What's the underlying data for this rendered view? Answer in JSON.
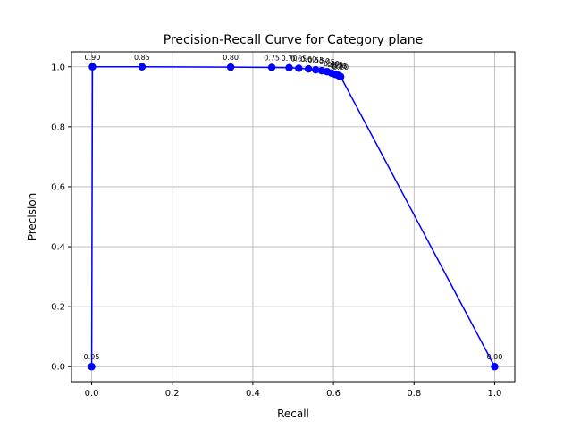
{
  "chart_data": {
    "type": "line",
    "title": "Precision-Recall Curve for Category plane",
    "xlabel": "Recall",
    "ylabel": "Precision",
    "xlim": [
      -0.05,
      1.05
    ],
    "ylim": [
      -0.05,
      1.05
    ],
    "xticks": [
      0.0,
      0.2,
      0.4,
      0.6,
      0.8,
      1.0
    ],
    "xtick_labels": [
      "0.0",
      "0.2",
      "0.4",
      "0.6",
      "0.8",
      "1.0"
    ],
    "yticks": [
      0.0,
      0.2,
      0.4,
      0.6,
      0.8,
      1.0
    ],
    "ytick_labels": [
      "0.0",
      "0.2",
      "0.4",
      "0.6",
      "0.8",
      "1.0"
    ],
    "grid": true,
    "series": [
      {
        "color": "#0000ff",
        "marker": "circle",
        "points": [
          {
            "recall": 0.0,
            "precision": 0.0,
            "label": "0.95"
          },
          {
            "recall": 0.002,
            "precision": 1.0,
            "label": "0.90"
          },
          {
            "recall": 0.125,
            "precision": 1.0,
            "label": "0.85"
          },
          {
            "recall": 0.345,
            "precision": 0.999,
            "label": "0.80"
          },
          {
            "recall": 0.447,
            "precision": 0.998,
            "label": "0.75"
          },
          {
            "recall": 0.49,
            "precision": 0.997,
            "label": "0.70"
          },
          {
            "recall": 0.514,
            "precision": 0.995,
            "label": "0.65"
          },
          {
            "recall": 0.538,
            "precision": 0.993,
            "label": "0.60"
          },
          {
            "recall": 0.556,
            "precision": 0.99,
            "label": "0.55"
          },
          {
            "recall": 0.571,
            "precision": 0.987,
            "label": "0.50"
          },
          {
            "recall": 0.584,
            "precision": 0.984,
            "label": "0.45"
          },
          {
            "recall": 0.595,
            "precision": 0.979,
            "label": "0.40"
          },
          {
            "recall": 0.604,
            "precision": 0.975,
            "label": "0.35"
          },
          {
            "recall": 0.611,
            "precision": 0.972,
            "label": "0.30"
          },
          {
            "recall": 0.615,
            "precision": 0.969,
            "label": "0.25"
          },
          {
            "recall": 0.618,
            "precision": 0.967,
            "label": "0.20"
          },
          {
            "recall": 1.0,
            "precision": 0.0,
            "label": "0.00"
          }
        ]
      }
    ]
  }
}
